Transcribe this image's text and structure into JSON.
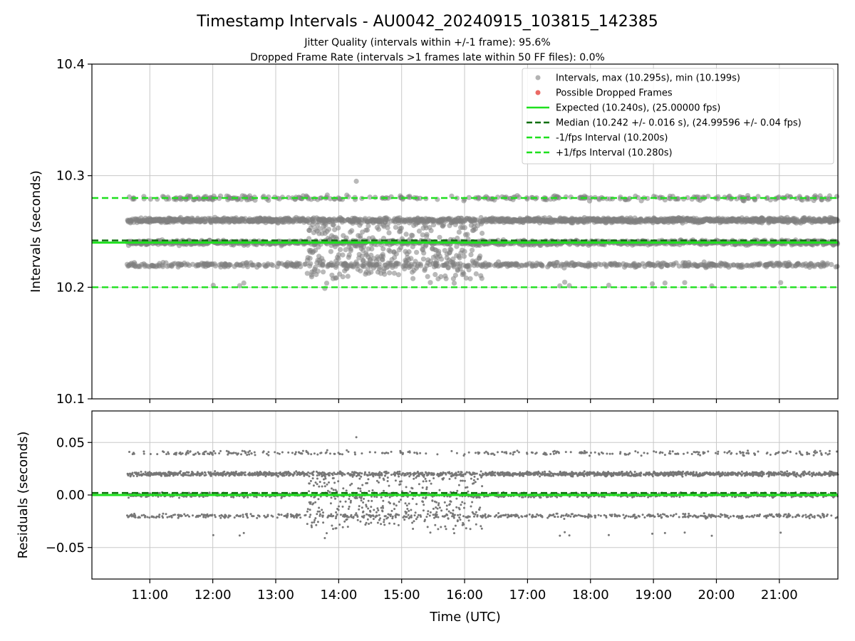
{
  "chart_data": {
    "type": "scatter",
    "title": "Timestamp Intervals - AU0042_20240915_103815_142385",
    "subtitle_lines": [
      "Jitter Quality (intervals within +/-1 frame): 95.6%",
      "Dropped Frame Rate (intervals >1 frames late within 50 FF files): 0.0%"
    ],
    "xlabel": "Time (UTC)",
    "x_ticks": [
      "11:00",
      "12:00",
      "13:00",
      "14:00",
      "15:00",
      "16:00",
      "17:00",
      "18:00",
      "19:00",
      "20:00",
      "21:00"
    ],
    "x_tick_hours": [
      11,
      12,
      13,
      14,
      15,
      16,
      17,
      18,
      19,
      20,
      21
    ],
    "xlim_hours": [
      10.08,
      21.93
    ],
    "data_start_hours": 10.64,
    "data_end_hours": 21.93,
    "grid": true,
    "top_panel": {
      "ylabel": "Intervals (seconds)",
      "ylim": [
        10.1,
        10.4
      ],
      "y_ticks": [
        "10.1",
        "10.2",
        "10.3",
        "10.4"
      ],
      "y_tick_values": [
        10.1,
        10.2,
        10.3,
        10.4
      ],
      "legend_position": "top-right",
      "legend": [
        {
          "label": "Intervals, max (10.295s), min (10.199s)",
          "kind": "dot",
          "color": "#808080"
        },
        {
          "label": "Possible Dropped Frames",
          "kind": "dot",
          "color": "#e8504a"
        },
        {
          "label": "Expected (10.240s), (25.00000 fps)",
          "kind": "line",
          "color": "#1ee01e"
        },
        {
          "label": "Median (10.242 +/- 0.016 s), (24.99596 +/- 0.04 fps)",
          "kind": "dash",
          "color": "#0a6e0a"
        },
        {
          "label": "-1/fps Interval (10.200s)",
          "kind": "dash",
          "color": "#1ee01e"
        },
        {
          "label": "+1/fps Interval (10.280s)",
          "kind": "dash",
          "color": "#1ee01e"
        }
      ],
      "reference_lines": [
        {
          "name": "expected",
          "value": 10.24,
          "style": "solid",
          "color": "#1ee01e"
        },
        {
          "name": "median",
          "value": 10.242,
          "style": "dash",
          "color": "#0a6e0a"
        },
        {
          "name": "minus-1-fps",
          "value": 10.2,
          "style": "dash",
          "color": "#1ee01e"
        },
        {
          "name": "plus-1-fps",
          "value": 10.28,
          "style": "dash",
          "color": "#1ee01e"
        }
      ],
      "series": [
        {
          "kind": "intervals",
          "count": 3900,
          "max": 10.295,
          "min": 10.199,
          "bands": [
            10.22,
            10.24,
            10.26,
            10.28
          ],
          "color": "#808080"
        },
        {
          "kind": "possible-dropped-frames",
          "count": 0,
          "color": "#e8504a"
        }
      ]
    },
    "bottom_panel": {
      "ylabel": "Residuals (seconds)",
      "ylim": [
        -0.08,
        0.08
      ],
      "y_ticks": [
        "0.05",
        "0.00",
        "−0.05"
      ],
      "y_tick_values": [
        0.05,
        0.0,
        -0.05
      ],
      "reference_lines": [
        {
          "name": "zero",
          "value": 0.0,
          "style": "solid",
          "color": "#1ee01e"
        },
        {
          "name": "median-residual",
          "value": 0.002,
          "style": "dash",
          "color": "#0a6e0a"
        }
      ],
      "series": [
        {
          "kind": "residuals",
          "bands": [
            -0.02,
            0.0,
            0.02,
            0.04
          ],
          "color": "#808080"
        }
      ]
    }
  }
}
